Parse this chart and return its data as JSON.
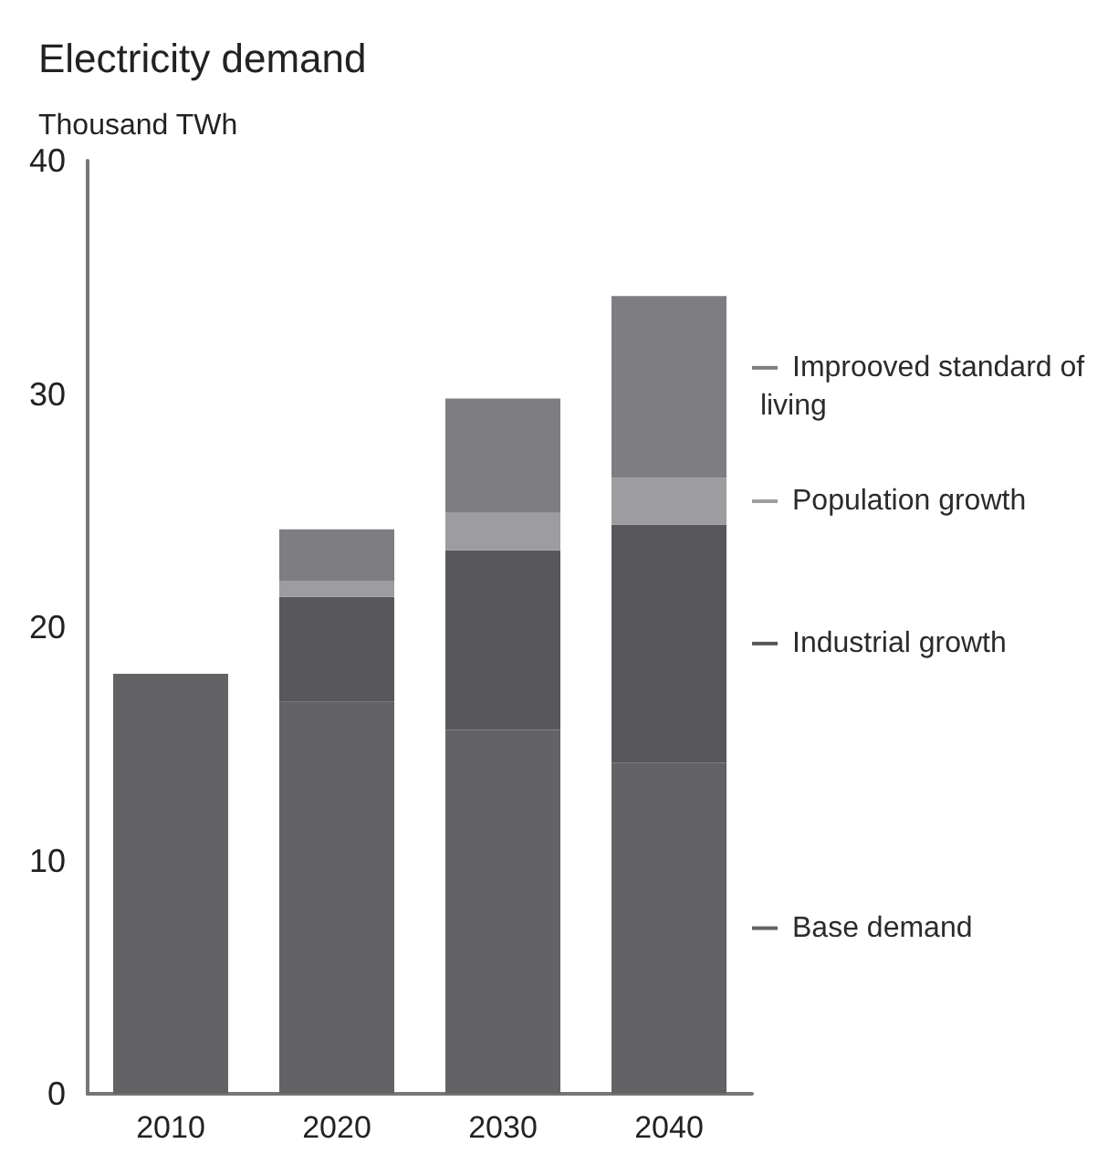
{
  "chart_data": {
    "type": "bar",
    "title": "Electricity demand",
    "ylabel": "Thousand TWh",
    "categories": [
      "2010",
      "2020",
      "2030",
      "2040"
    ],
    "stacked": true,
    "series": [
      {
        "name": "Base demand",
        "color": "#636366",
        "values": [
          18,
          16.8,
          15.6,
          14.2
        ]
      },
      {
        "name": "Industrial growth",
        "color": "#58585c",
        "values": [
          null,
          4.5,
          7.7,
          10.2
        ]
      },
      {
        "name": "Population growth",
        "color": "#9d9da0",
        "values": [
          null,
          0.7,
          1.6,
          2.0
        ]
      },
      {
        "name": "Improoved standard of living",
        "color": "#7e7e82",
        "values": [
          null,
          2.2,
          4.9,
          7.8
        ]
      }
    ],
    "ylim": [
      0,
      40
    ],
    "yticks": [
      0,
      10,
      20,
      30,
      40
    ],
    "grid": false,
    "legend": "right"
  }
}
